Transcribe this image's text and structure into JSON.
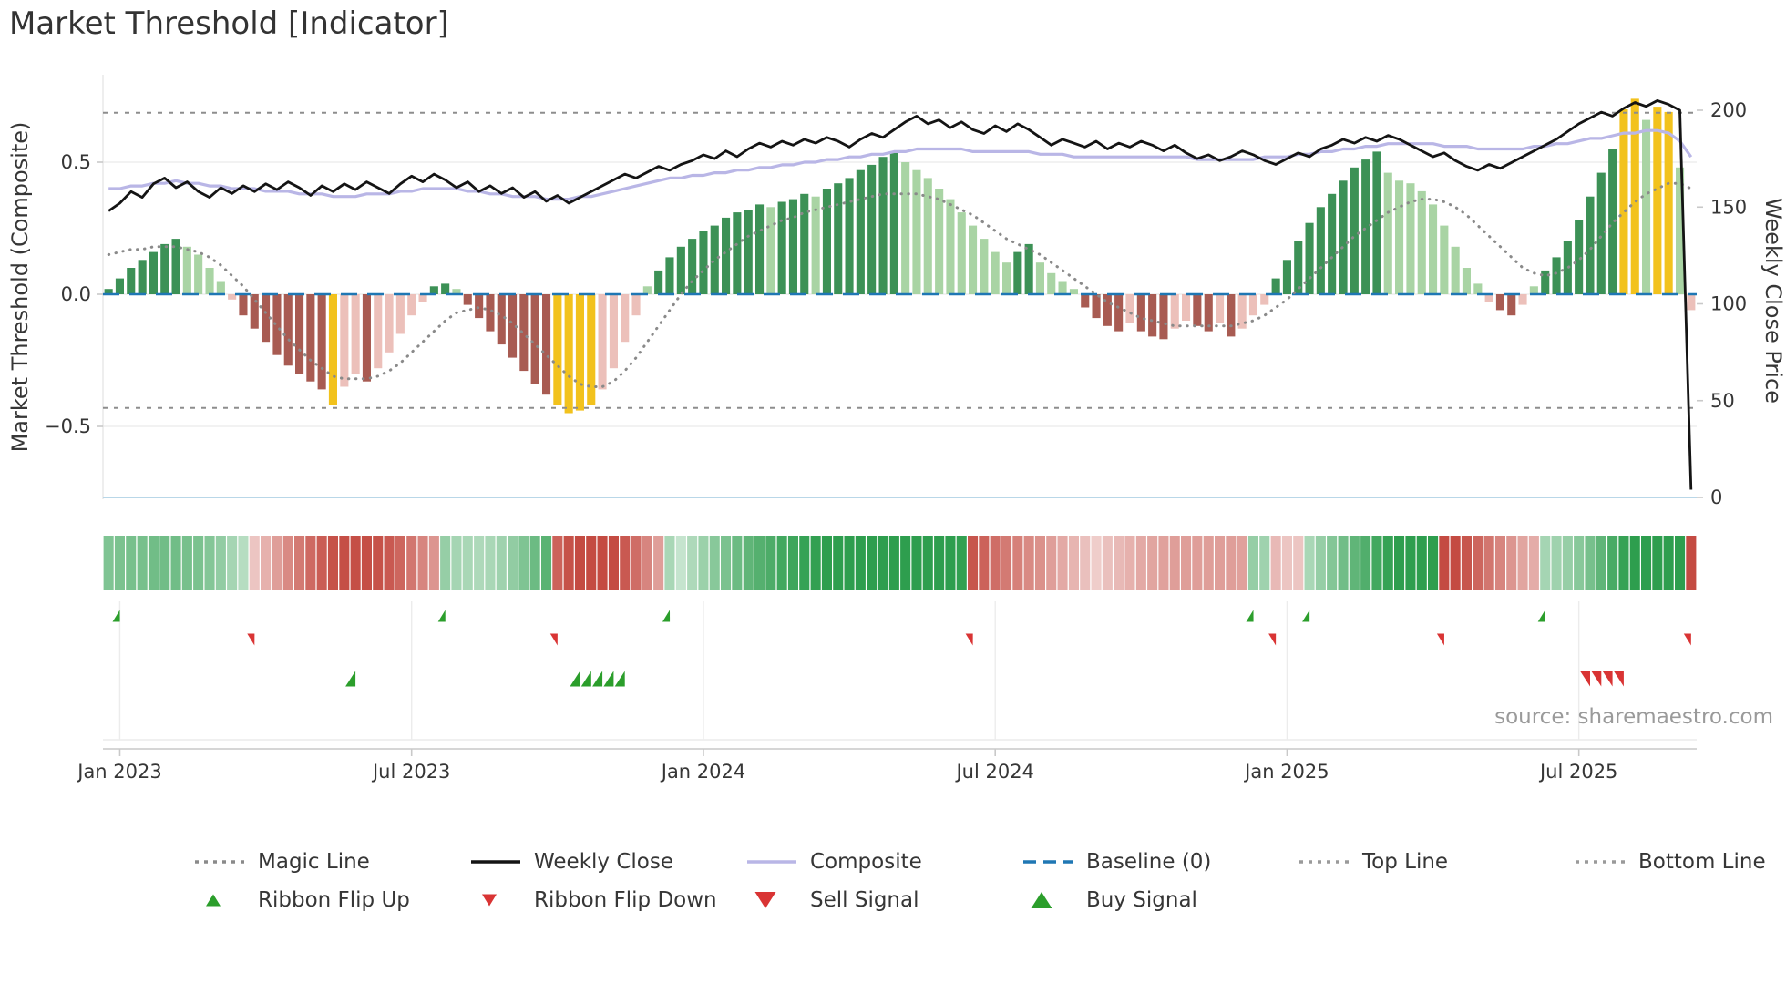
{
  "title": "Market Threshold [Indicator]",
  "source": "source: sharemaestro.com",
  "palette": {
    "bar_up_strong": "#3c9156",
    "bar_up_weak": "#a9d4a4",
    "bar_down_strong": "#a85b52",
    "bar_down_weak": "#ecc0ba",
    "bar_extreme": "#f2c21d",
    "ribbon_green": "#2e9e4e",
    "ribbon_red": "#c44b42",
    "weekly_close": "#141414",
    "composite": "#b9b6e6",
    "magic_line": "#8a8a8a",
    "baseline": "#1f77b4",
    "ref_line": "#8d8d8d",
    "signal_green": "#2b9e2b",
    "signal_red": "#d93434"
  },
  "chart_data": {
    "type": "bar",
    "title": "Market Threshold [Indicator]",
    "x_axis": {
      "unit": "week",
      "n_points": 142,
      "tick_labels": [
        "Jan 2023",
        "Jul 2023",
        "Jan 2024",
        "Jul 2024",
        "Jan 2025",
        "Jul 2025"
      ],
      "tick_positions": [
        1,
        27,
        53,
        79,
        105,
        131
      ]
    },
    "y_left": {
      "label": "Market Threshold (Composite)",
      "range": [
        -0.78,
        0.83
      ],
      "ticks": [
        0.5,
        0.0,
        -0.5
      ]
    },
    "y_right": {
      "label": "Weekly Close Price",
      "range": [
        0,
        210
      ],
      "ticks": [
        200,
        150,
        100,
        50,
        0
      ]
    },
    "reference_lines": {
      "top_line": 0.687,
      "bottom_line": -0.43,
      "baseline": 0
    },
    "bars": {
      "name": "Market Threshold",
      "extreme_high": 0.68,
      "extreme_low": -0.41,
      "values": [
        0.02,
        0.06,
        0.1,
        0.13,
        0.16,
        0.19,
        0.21,
        0.18,
        0.15,
        0.1,
        0.05,
        -0.02,
        -0.08,
        -0.13,
        -0.18,
        -0.23,
        -0.27,
        -0.3,
        -0.33,
        -0.36,
        -0.42,
        -0.35,
        -0.3,
        -0.33,
        -0.28,
        -0.22,
        -0.15,
        -0.08,
        -0.03,
        0.03,
        0.04,
        0.02,
        -0.04,
        -0.09,
        -0.14,
        -0.19,
        -0.24,
        -0.29,
        -0.34,
        -0.38,
        -0.42,
        -0.45,
        -0.44,
        -0.42,
        -0.36,
        -0.28,
        -0.18,
        -0.08,
        0.03,
        0.09,
        0.14,
        0.18,
        0.21,
        0.24,
        0.26,
        0.29,
        0.31,
        0.32,
        0.34,
        0.33,
        0.35,
        0.36,
        0.38,
        0.37,
        0.4,
        0.42,
        0.44,
        0.47,
        0.49,
        0.52,
        0.54,
        0.5,
        0.47,
        0.44,
        0.4,
        0.36,
        0.31,
        0.26,
        0.21,
        0.16,
        0.12,
        0.16,
        0.19,
        0.12,
        0.08,
        0.05,
        0.02,
        -0.05,
        -0.09,
        -0.12,
        -0.14,
        -0.11,
        -0.14,
        -0.16,
        -0.17,
        -0.13,
        -0.1,
        -0.12,
        -0.14,
        -0.11,
        -0.16,
        -0.13,
        -0.08,
        -0.04,
        0.06,
        0.13,
        0.2,
        0.27,
        0.33,
        0.38,
        0.43,
        0.48,
        0.51,
        0.54,
        0.46,
        0.43,
        0.42,
        0.39,
        0.34,
        0.26,
        0.18,
        0.1,
        0.04,
        -0.03,
        -0.06,
        -0.08,
        -0.04,
        0.03,
        0.09,
        0.14,
        0.2,
        0.28,
        0.37,
        0.46,
        0.55,
        0.7,
        0.74,
        0.66,
        0.71,
        0.69,
        0.48,
        -0.06
      ]
    },
    "series": [
      {
        "name": "Weekly Close",
        "axis": "right",
        "values": [
          148,
          152,
          158,
          155,
          162,
          165,
          160,
          163,
          158,
          155,
          160,
          157,
          161,
          158,
          162,
          159,
          163,
          160,
          156,
          161,
          158,
          162,
          159,
          163,
          160,
          157,
          162,
          166,
          163,
          167,
          164,
          160,
          163,
          158,
          161,
          157,
          160,
          155,
          158,
          153,
          156,
          152,
          155,
          158,
          161,
          164,
          167,
          165,
          168,
          171,
          169,
          172,
          174,
          177,
          175,
          179,
          176,
          180,
          183,
          181,
          184,
          182,
          185,
          183,
          186,
          184,
          181,
          185,
          188,
          186,
          190,
          194,
          197,
          193,
          195,
          191,
          194,
          190,
          188,
          192,
          189,
          193,
          190,
          186,
          182,
          185,
          183,
          181,
          184,
          180,
          183,
          181,
          184,
          182,
          179,
          182,
          178,
          175,
          177,
          174,
          176,
          179,
          177,
          174,
          172,
          175,
          178,
          176,
          180,
          182,
          185,
          183,
          186,
          184,
          187,
          185,
          182,
          179,
          176,
          178,
          174,
          171,
          169,
          172,
          170,
          173,
          176,
          179,
          182,
          185,
          189,
          193,
          196,
          199,
          197,
          201,
          204,
          202,
          205,
          203,
          200,
          4
        ]
      },
      {
        "name": "Composite",
        "axis": "left",
        "values": [
          0.4,
          0.4,
          0.41,
          0.41,
          0.42,
          0.42,
          0.43,
          0.42,
          0.42,
          0.41,
          0.41,
          0.4,
          0.4,
          0.4,
          0.39,
          0.39,
          0.39,
          0.38,
          0.38,
          0.38,
          0.37,
          0.37,
          0.37,
          0.38,
          0.38,
          0.38,
          0.39,
          0.39,
          0.4,
          0.4,
          0.4,
          0.4,
          0.39,
          0.39,
          0.38,
          0.38,
          0.37,
          0.37,
          0.37,
          0.36,
          0.36,
          0.36,
          0.37,
          0.37,
          0.38,
          0.39,
          0.4,
          0.41,
          0.42,
          0.43,
          0.44,
          0.44,
          0.45,
          0.45,
          0.46,
          0.46,
          0.47,
          0.47,
          0.48,
          0.48,
          0.49,
          0.49,
          0.5,
          0.5,
          0.51,
          0.51,
          0.52,
          0.52,
          0.53,
          0.53,
          0.54,
          0.54,
          0.55,
          0.55,
          0.55,
          0.55,
          0.55,
          0.54,
          0.54,
          0.54,
          0.54,
          0.54,
          0.54,
          0.53,
          0.53,
          0.53,
          0.52,
          0.52,
          0.52,
          0.52,
          0.52,
          0.52,
          0.52,
          0.52,
          0.52,
          0.52,
          0.52,
          0.51,
          0.51,
          0.51,
          0.51,
          0.51,
          0.51,
          0.52,
          0.52,
          0.52,
          0.53,
          0.53,
          0.54,
          0.54,
          0.55,
          0.55,
          0.56,
          0.56,
          0.57,
          0.57,
          0.57,
          0.57,
          0.57,
          0.56,
          0.56,
          0.56,
          0.55,
          0.55,
          0.55,
          0.55,
          0.55,
          0.56,
          0.56,
          0.57,
          0.57,
          0.58,
          0.59,
          0.59,
          0.6,
          0.61,
          0.61,
          0.62,
          0.62,
          0.61,
          0.58,
          0.52
        ]
      },
      {
        "name": "Magic Line",
        "axis": "left",
        "values": [
          0.15,
          0.16,
          0.17,
          0.17,
          0.18,
          0.18,
          0.18,
          0.17,
          0.16,
          0.14,
          0.11,
          0.07,
          0.03,
          -0.02,
          -0.07,
          -0.12,
          -0.17,
          -0.21,
          -0.25,
          -0.28,
          -0.31,
          -0.32,
          -0.32,
          -0.32,
          -0.31,
          -0.29,
          -0.26,
          -0.22,
          -0.18,
          -0.14,
          -0.1,
          -0.07,
          -0.06,
          -0.05,
          -0.06,
          -0.08,
          -0.11,
          -0.15,
          -0.19,
          -0.23,
          -0.27,
          -0.31,
          -0.34,
          -0.35,
          -0.35,
          -0.33,
          -0.29,
          -0.24,
          -0.18,
          -0.12,
          -0.06,
          0.0,
          0.05,
          0.09,
          0.13,
          0.16,
          0.19,
          0.22,
          0.24,
          0.26,
          0.28,
          0.29,
          0.31,
          0.32,
          0.33,
          0.34,
          0.35,
          0.36,
          0.37,
          0.38,
          0.38,
          0.38,
          0.38,
          0.37,
          0.36,
          0.34,
          0.32,
          0.3,
          0.27,
          0.24,
          0.21,
          0.19,
          0.17,
          0.15,
          0.12,
          0.09,
          0.06,
          0.03,
          0.0,
          -0.03,
          -0.05,
          -0.07,
          -0.09,
          -0.1,
          -0.11,
          -0.12,
          -0.12,
          -0.12,
          -0.12,
          -0.12,
          -0.12,
          -0.11,
          -0.1,
          -0.08,
          -0.05,
          -0.02,
          0.02,
          0.06,
          0.1,
          0.14,
          0.18,
          0.22,
          0.25,
          0.28,
          0.31,
          0.33,
          0.35,
          0.36,
          0.36,
          0.35,
          0.33,
          0.3,
          0.26,
          0.22,
          0.18,
          0.14,
          0.1,
          0.08,
          0.07,
          0.08,
          0.1,
          0.13,
          0.17,
          0.22,
          0.27,
          0.31,
          0.35,
          0.38,
          0.4,
          0.42,
          0.42,
          0.4
        ]
      }
    ],
    "ribbon_segments": [
      {
        "sign": 1,
        "weeks": 13
      },
      {
        "sign": -1,
        "weeks": 17
      },
      {
        "sign": 1,
        "weeks": 10
      },
      {
        "sign": -1,
        "weeks": 10
      },
      {
        "sign": 1,
        "weeks": 27
      },
      {
        "sign": -1,
        "weeks": 25
      },
      {
        "sign": 1,
        "weeks": 2
      },
      {
        "sign": -1,
        "weeks": 3
      },
      {
        "sign": 1,
        "weeks": 12
      },
      {
        "sign": -1,
        "weeks": 9
      },
      {
        "sign": 1,
        "weeks": 13
      },
      {
        "sign": -1,
        "weeks": 1
      }
    ],
    "signals": {
      "ribbon_flip_up_weeks": [
        1,
        30,
        50,
        102,
        107,
        128
      ],
      "ribbon_flip_down_weeks": [
        13,
        40,
        77,
        104,
        119,
        141
      ],
      "buy_weeks": [
        22,
        42,
        43,
        44,
        45,
        46
      ],
      "sell_weeks": [
        132,
        133,
        134,
        135
      ]
    }
  },
  "legend": [
    {
      "label": "Magic Line",
      "swatch": "line-dotted",
      "color": "#8a8a8a"
    },
    {
      "label": "Weekly Close",
      "swatch": "line",
      "color": "#141414"
    },
    {
      "label": "Composite",
      "swatch": "line",
      "color": "#b9b6e6"
    },
    {
      "label": "Baseline (0)",
      "swatch": "line-dashed",
      "color": "#1f77b4"
    },
    {
      "label": "Top Line",
      "swatch": "line-dotted",
      "color": "#9a9a9a"
    },
    {
      "label": "Bottom Line",
      "swatch": "line-dotted",
      "color": "#9a9a9a"
    },
    {
      "label": "Ribbon Flip Up",
      "swatch": "triangle-up-small",
      "color": "#2b9e2b"
    },
    {
      "label": "Ribbon Flip Down",
      "swatch": "triangle-down-small",
      "color": "#d93434"
    },
    {
      "label": "Sell Signal",
      "swatch": "triangle-down",
      "color": "#d93434"
    },
    {
      "label": "Buy Signal",
      "swatch": "triangle-up",
      "color": "#2b9e2b"
    }
  ]
}
